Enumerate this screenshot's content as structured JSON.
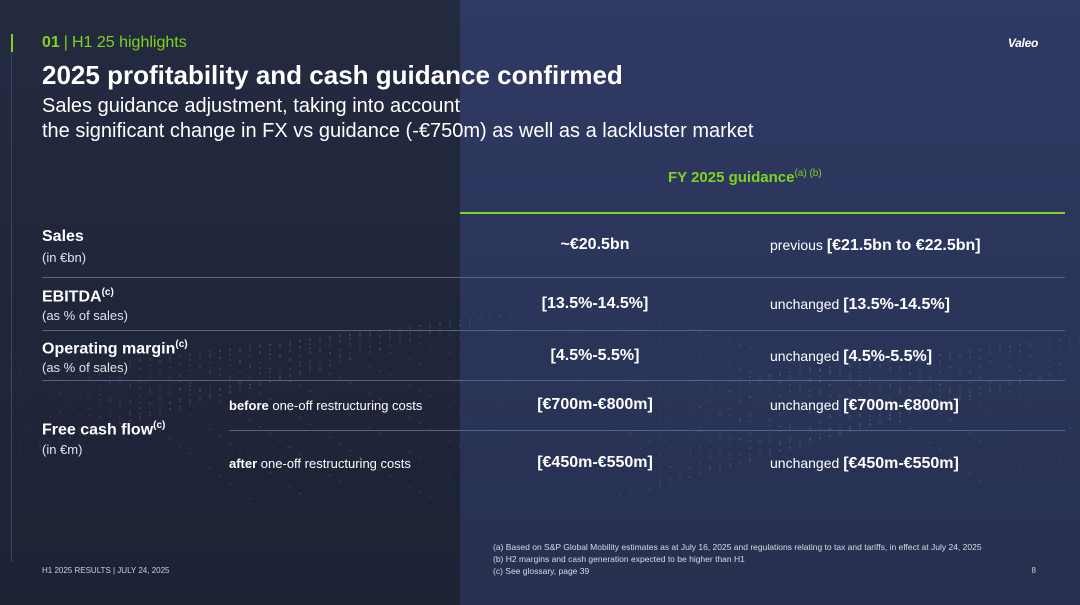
{
  "header": {
    "section_number": "01",
    "section_title": "H1 25 highlights",
    "logo": "Valeo",
    "title": "2025 profitability and cash guidance confirmed",
    "subtitle_line1": "Sales guidance adjustment, taking into account",
    "subtitle_line2": "the significant change in FX vs guidance (-€750m) as well as a lackluster market"
  },
  "table": {
    "column_header": "FY 2025 guidance",
    "column_header_notes": "(a) (b)",
    "rows": [
      {
        "label": "Sales",
        "note": "",
        "unit": "(in €bn)",
        "value": "~€20.5bn",
        "prev_prefix": "previous",
        "prev_value": "[€21.5bn to €22.5bn]"
      },
      {
        "label": "EBITDA",
        "note": "(c)",
        "unit": "(as % of sales)",
        "value": "[13.5%-14.5%]",
        "prev_prefix": "unchanged",
        "prev_value": "[13.5%-14.5%]"
      },
      {
        "label": "Operating margin",
        "note": "(c)",
        "unit": "(as % of sales)",
        "value": "[4.5%-5.5%]",
        "prev_prefix": "unchanged",
        "prev_value": "[4.5%-5.5%]"
      }
    ],
    "fcf": {
      "label": "Free cash flow",
      "note": "(c)",
      "unit": "(in €m)",
      "sub_rows": [
        {
          "bold": "before",
          "rest": " one-off restructuring costs",
          "value": "[€700m-€800m]",
          "prev_prefix": "unchanged",
          "prev_value": "[€700m-€800m]"
        },
        {
          "bold": "after",
          "rest": " one-off restructuring costs",
          "value": "[€450m-€550m]",
          "prev_prefix": "unchanged",
          "prev_value": "[€450m-€550m]"
        }
      ]
    }
  },
  "footer": {
    "left": "H1 2025 RESULTS | JULY 24, 2025",
    "page": "8",
    "notes": [
      "(a) Based on S&P Global Mobility estimates as at July 16, 2025 and regulations relating to tax and tariffs, in effect at July 24, 2025",
      "(b) H2 margins and cash generation expected to be higher than H1",
      "(c) See glossary, page 39"
    ]
  }
}
